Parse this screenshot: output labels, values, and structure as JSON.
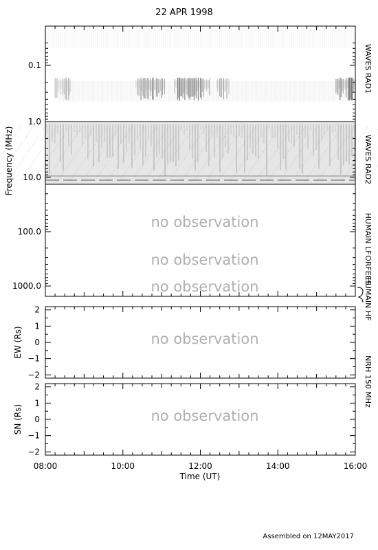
{
  "title": "22 APR 1998",
  "footer": "Assembled on 12MAY2017",
  "chart_data": [
    {
      "type": "heatmap",
      "panel": "dynamic-spectrum",
      "ylabel": "Frequency (MHz)",
      "y_scale": "log",
      "y_reversed": true,
      "yticks": [
        {
          "value": 0.1,
          "label": "0.1"
        },
        {
          "value": 1.0,
          "label": "1.0"
        },
        {
          "value": 10.0,
          "label": "10.0"
        },
        {
          "value": 100.0,
          "label": "100.0"
        },
        {
          "value": 1000.0,
          "label": "1000.0"
        }
      ],
      "ylim": [
        0.02,
        1500
      ],
      "bands": [
        {
          "name": "WAVES RAD1",
          "freq_range": [
            0.02,
            1.07
          ],
          "status": "observed",
          "emission_band_mhz": [
            0.2,
            0.35
          ],
          "activity_bursts": [
            {
              "t_start": "08:15",
              "t_end": "08:40",
              "intensity": 0.45
            },
            {
              "t_start": "10:20",
              "t_end": "11:05",
              "intensity": 0.7
            },
            {
              "t_start": "11:20",
              "t_end": "12:15",
              "intensity": 0.8
            },
            {
              "t_start": "12:25",
              "t_end": "12:45",
              "intensity": 0.55
            },
            {
              "t_start": "15:30",
              "t_end": "16:00",
              "intensity": 0.9
            }
          ]
        },
        {
          "name": "WAVES RAD2",
          "freq_range": [
            1.07,
            14
          ],
          "status": "observed"
        },
        {
          "name": "HUMAIN LF",
          "freq_range": [
            14,
            200
          ],
          "status": "no observation"
        },
        {
          "name": "ORFEES",
          "freq_range": [
            200,
            1000
          ],
          "status": "no observation"
        },
        {
          "name": "HUMAIN HF",
          "freq_range": [
            1000,
            1500
          ],
          "status": "no observation"
        }
      ],
      "no_observation_text": "no observation"
    },
    {
      "type": "line",
      "panel": "EW",
      "ylabel": "EW (Rs)",
      "ylim": [
        -2.2,
        2.2
      ],
      "yticks": [
        "2",
        "1",
        "0",
        "−1",
        "−2"
      ],
      "status": "no observation"
    },
    {
      "type": "line",
      "panel": "SN",
      "ylabel": "SN (Rs)",
      "ylim": [
        -2.2,
        2.2
      ],
      "yticks": [
        "2",
        "1",
        "0",
        "−1",
        "−2"
      ],
      "status": "no observation"
    }
  ],
  "shared_x": {
    "xlabel": "Time (UT)",
    "xlim": [
      "08:00",
      "16:00"
    ],
    "xticks": [
      "08:00",
      "10:00",
      "12:00",
      "14:00",
      "16:00"
    ]
  },
  "right_labels": {
    "rad1": "WAVES RAD1",
    "rad2": "WAVES RAD2",
    "humain_lf": "HUMAIN LF",
    "orfees": "ORFEES",
    "humain_hf": "HUMAIN HF",
    "nrh": "NRH 150 MHz"
  },
  "no_obs": "no observation"
}
